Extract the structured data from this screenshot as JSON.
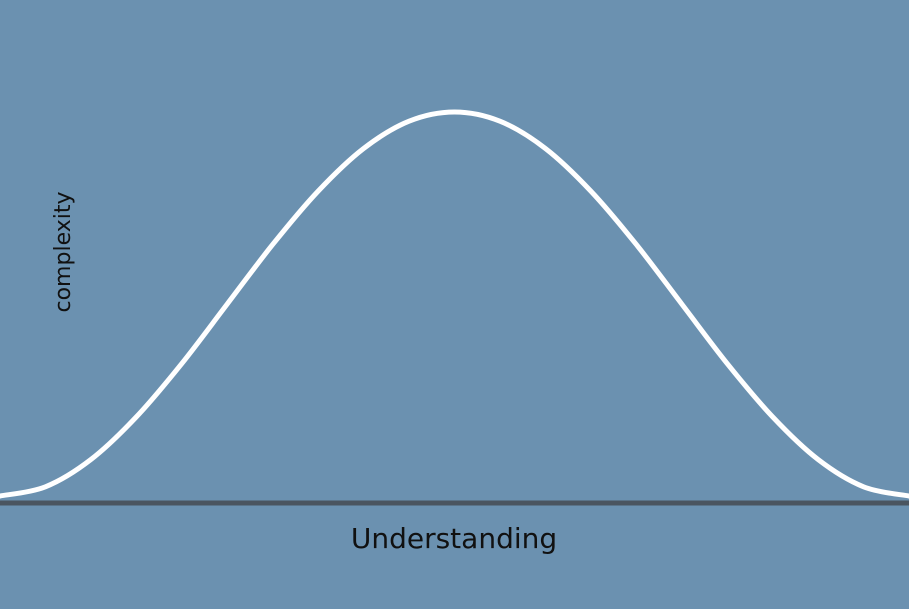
{
  "colors": {
    "background": "#6b91b0",
    "curve": "#ffffff",
    "baseline": "#4a5560",
    "text": "#111111"
  },
  "chart_data": {
    "type": "line",
    "title": "",
    "xlabel": "Understanding",
    "ylabel": "complexity",
    "grid": false,
    "legend": "none",
    "xlim": [
      0,
      1
    ],
    "ylim": [
      0,
      1
    ],
    "series": [
      {
        "x": [
          0,
          0.05,
          0.1,
          0.15,
          0.2,
          0.25,
          0.3,
          0.35,
          0.4,
          0.45,
          0.5,
          0.55,
          0.6,
          0.65,
          0.7,
          0.75,
          0.8,
          0.85,
          0.9,
          0.95,
          1
        ],
        "y": [
          0,
          0.024,
          0.095,
          0.206,
          0.345,
          0.5,
          0.655,
          0.794,
          0.905,
          0.976,
          1,
          0.976,
          0.905,
          0.794,
          0.655,
          0.5,
          0.345,
          0.206,
          0.095,
          0.024,
          0
        ]
      }
    ]
  }
}
